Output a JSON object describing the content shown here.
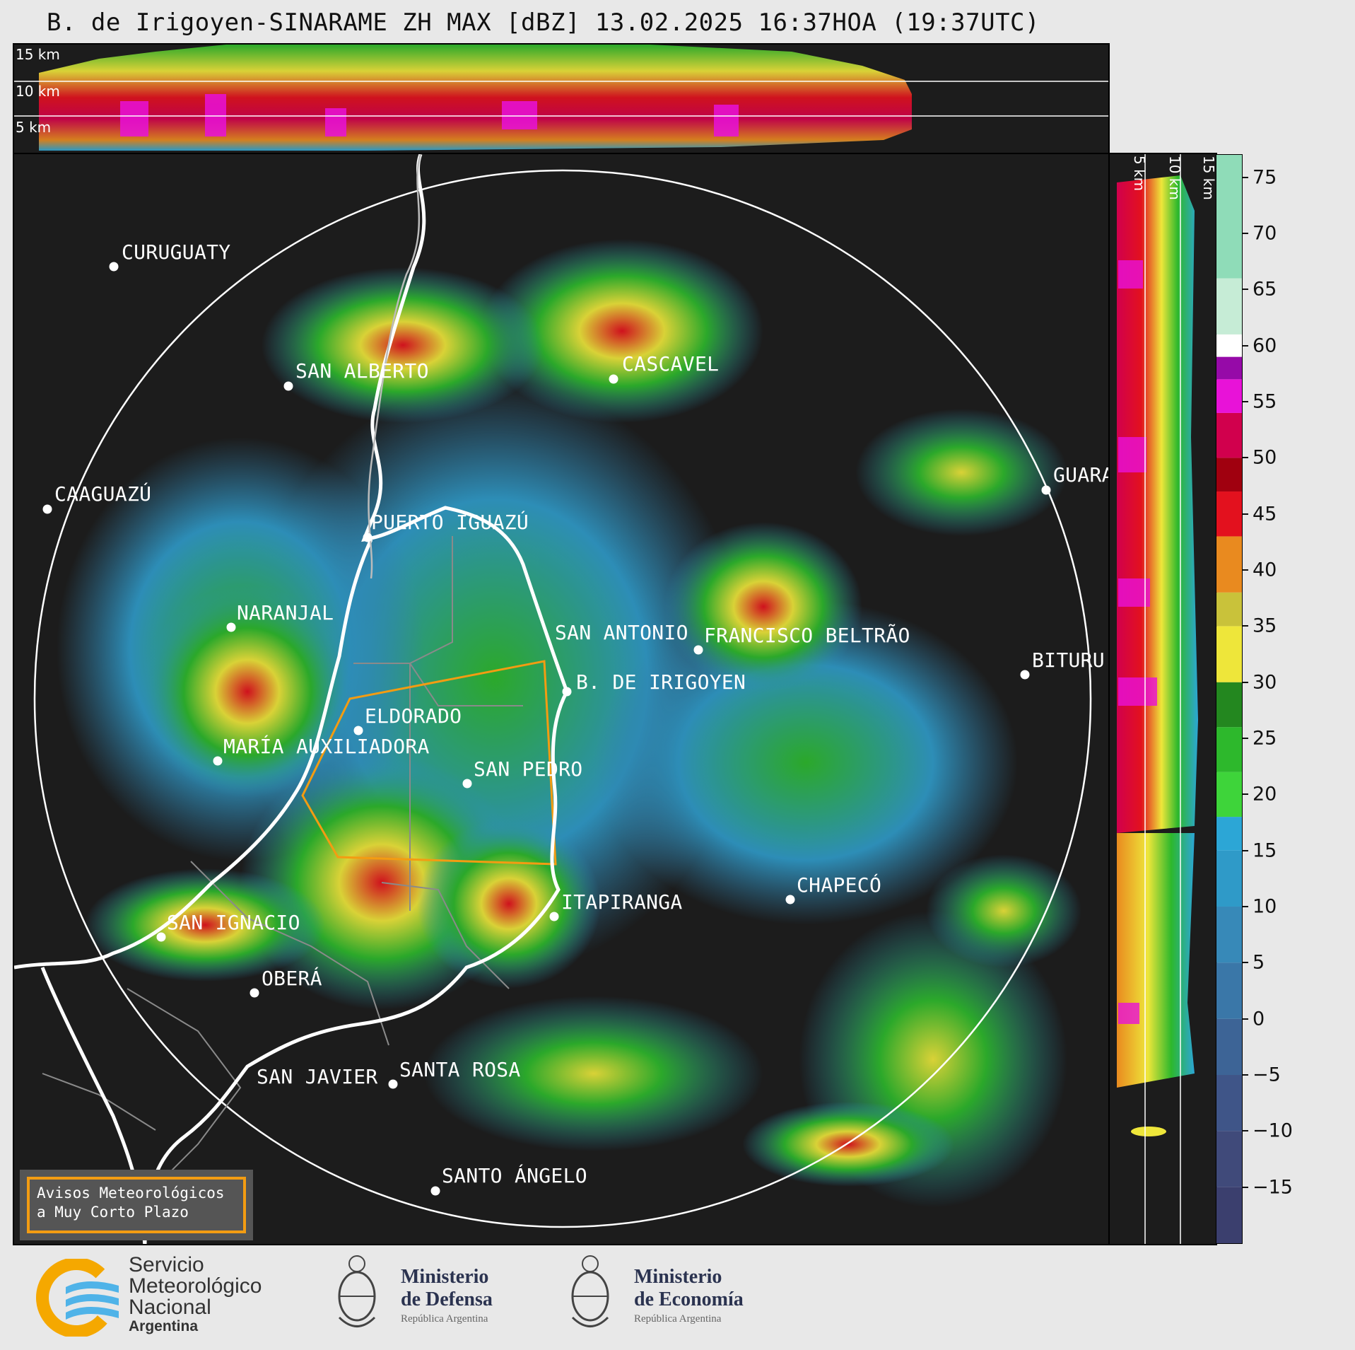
{
  "title": "B. de Irigoyen-SINARAME ZH MAX [dBZ] 13.02.2025 16:37HOA (19:37UTC)",
  "top_panel": {
    "height_labels": [
      "15 km",
      "10 km",
      "5 km"
    ]
  },
  "right_panel": {
    "height_labels": [
      "5 km",
      "10 km",
      "15 km"
    ]
  },
  "colorbar": {
    "unit": "dBZ",
    "min": -20,
    "max": 77,
    "ticks": [
      "75",
      "70",
      "65",
      "60",
      "55",
      "50",
      "45",
      "40",
      "35",
      "30",
      "25",
      "20",
      "15",
      "10",
      "5",
      "0",
      "−5",
      "−10",
      "−15"
    ],
    "tick_values": [
      75,
      70,
      65,
      60,
      55,
      50,
      45,
      40,
      35,
      30,
      25,
      20,
      15,
      10,
      5,
      0,
      -5,
      -10,
      -15
    ],
    "palette": [
      {
        "from": -20,
        "to": -15,
        "color": "#3b3f6e"
      },
      {
        "from": -15,
        "to": -10,
        "color": "#404a7a"
      },
      {
        "from": -10,
        "to": -5,
        "color": "#3f5588"
      },
      {
        "from": -5,
        "to": 0,
        "color": "#3d6496"
      },
      {
        "from": 0,
        "to": 5,
        "color": "#3a77a8"
      },
      {
        "from": 5,
        "to": 10,
        "color": "#3789b8"
      },
      {
        "from": 10,
        "to": 15,
        "color": "#2f9ac8"
      },
      {
        "from": 15,
        "to": 18,
        "color": "#2ca6d6"
      },
      {
        "from": 18,
        "to": 22,
        "color": "#3ed43a"
      },
      {
        "from": 22,
        "to": 26,
        "color": "#2db82c"
      },
      {
        "from": 26,
        "to": 30,
        "color": "#23871f"
      },
      {
        "from": 30,
        "to": 35,
        "color": "#eee63a"
      },
      {
        "from": 35,
        "to": 38,
        "color": "#c9c23a"
      },
      {
        "from": 38,
        "to": 43,
        "color": "#e98a1f"
      },
      {
        "from": 43,
        "to": 47,
        "color": "#e3111e"
      },
      {
        "from": 47,
        "to": 50,
        "color": "#a0000f"
      },
      {
        "from": 50,
        "to": 54,
        "color": "#d1004d"
      },
      {
        "from": 54,
        "to": 57,
        "color": "#e812d8"
      },
      {
        "from": 57,
        "to": 59,
        "color": "#960aa8"
      },
      {
        "from": 59,
        "to": 61,
        "color": "#ffffff"
      },
      {
        "from": 61,
        "to": 66,
        "color": "#c6ecd6"
      },
      {
        "from": 66,
        "to": 77,
        "color": "#8fdcb8"
      }
    ]
  },
  "cities": [
    {
      "name": "CURUGUATY"
    },
    {
      "name": "SAN ALBERTO"
    },
    {
      "name": "CASCAVEL"
    },
    {
      "name": "CAAGUAZÚ"
    },
    {
      "name": "GUARA"
    },
    {
      "name": "PUERTO IGUAZÚ"
    },
    {
      "name": "NARANJAL"
    },
    {
      "name": "SAN ANTONIO"
    },
    {
      "name": "FRANCISCO BELTRÃO"
    },
    {
      "name": "B. DE IRIGOYEN"
    },
    {
      "name": "BITURU"
    },
    {
      "name": "ELDORADO"
    },
    {
      "name": "MARÍA AUXILIADORA"
    },
    {
      "name": "SAN PEDRO"
    },
    {
      "name": "CHAPECÓ"
    },
    {
      "name": "ITAPIRANGA"
    },
    {
      "name": "SAN IGNACIO"
    },
    {
      "name": "OBERÁ"
    },
    {
      "name": "SAN JAVIER"
    },
    {
      "name": "SANTA ROSA"
    },
    {
      "name": "SANTO ÁNGELO"
    }
  ],
  "avisos": {
    "line1": "Avisos Meteorológicos",
    "line2": "a Muy Corto Plazo"
  },
  "logos": {
    "smn": {
      "line1": "Servicio",
      "line2": "Meteorológico",
      "line3": "Nacional",
      "line4": "Argentina"
    },
    "defensa": {
      "line1": "Ministerio",
      "line2": "de Defensa",
      "line3": "República Argentina"
    },
    "economia": {
      "line1": "Ministerio",
      "line2": "de Economía",
      "line3": "República Argentina"
    }
  },
  "colors": {
    "range_ring": "#ffffff",
    "border": "#ffffff",
    "warning_polygon": "#f39c12",
    "background": "#1c1c1c"
  }
}
